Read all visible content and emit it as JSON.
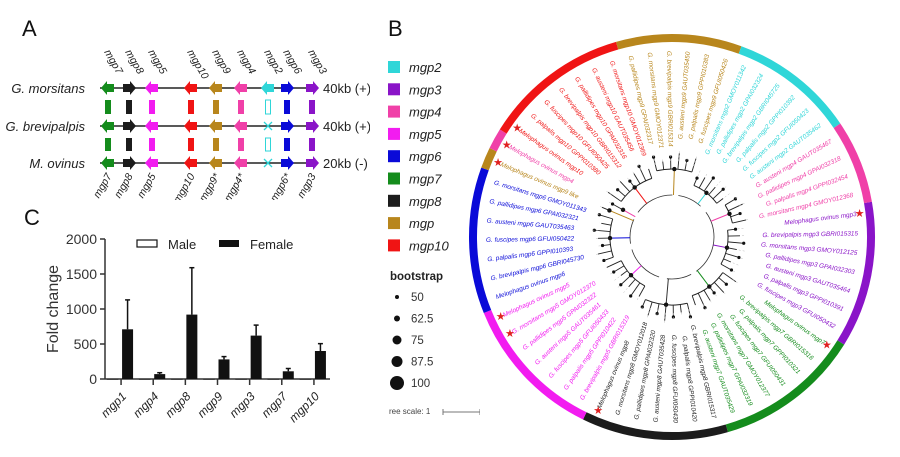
{
  "panels": {
    "A": {
      "letter": "A",
      "species": [
        {
          "name": "G. morsitans",
          "size": "40kb (+)",
          "genes": [
            "mgp7",
            "mgp8",
            "mgp5",
            "mgp10",
            "mgp9",
            "mgp4",
            "mgp2",
            "mgp6",
            "mgp3"
          ]
        },
        {
          "name": "G. brevipalpis",
          "size": "40kb (+)",
          "genes": [
            "mgp7",
            "mgp8",
            "mgp5",
            "mgp10",
            "mgp9",
            "mgp4",
            "absent",
            "mgp6",
            "mgp3"
          ]
        },
        {
          "name": "M. ovinus",
          "size": "20kb (-)",
          "genes": [
            "mgp7",
            "mgp8",
            "mgp5",
            "mgp10",
            "mgp9",
            "mgp4",
            "absent",
            "mgp6",
            "mgp3"
          ]
        }
      ],
      "top_labels": [
        "mgp7",
        "mgp8",
        "mgp5",
        "mgp10",
        "mgp9",
        "mgp4",
        "mgp2",
        "mgp6",
        "mgp3"
      ],
      "bottom_labels": [
        "mgp7",
        "mgp8",
        "mgp5",
        "mgp10",
        "mgp9*",
        "mgp4*",
        "mgp6*",
        "mgp3"
      ],
      "gene_colors": {
        "mgp2": "#2fd6d8",
        "mgp3": "#8a14c8",
        "mgp4": "#f040a8",
        "mgp5": "#f21cf0",
        "mgp6": "#0a0ad8",
        "mgp7": "#148c1c",
        "mgp8": "#1c1c1c",
        "mgp9": "#b8861c",
        "mgp10": "#f01414"
      }
    },
    "B": {
      "letter": "B",
      "legend": [
        {
          "label": "mgp2",
          "color": "#2fd6d8"
        },
        {
          "label": "mgp3",
          "color": "#8a14c8"
        },
        {
          "label": "mgp4",
          "color": "#f040a8"
        },
        {
          "label": "mgp5",
          "color": "#f21cf0"
        },
        {
          "label": "mgp6",
          "color": "#0a0ad8"
        },
        {
          "label": "mgp7",
          "color": "#148c1c"
        },
        {
          "label": "mgp8",
          "color": "#1c1c1c"
        },
        {
          "label": "mgp",
          "color": "#b8861c"
        },
        {
          "label": "mgp10",
          "color": "#f01414"
        }
      ],
      "bootstrap_title": "bootstrap",
      "bootstrap_values": [
        "50",
        "62.5",
        "75",
        "87.5",
        "100"
      ],
      "tree_scale_label": "ree scale: 1",
      "clades": [
        {
          "gene": "mgp3",
          "color": "#8a14c8",
          "leaves": [
            "Melophagus ovinus mgp3",
            "G. brevipalpis mgp3 GBRI015315",
            "G. morsitans mgp3 GMOY012125",
            "G. pallidipes mgp3 GPAI032303",
            "G. austeni mgp3 GAUT035464",
            "G. palpalis mgp3 GPPI010391",
            "G. fuscipes mgp3 GFUI050432"
          ],
          "starred": [
            0
          ]
        },
        {
          "gene": "mgp7",
          "color": "#148c1c",
          "leaves": [
            "Melophagus ovinus mgp7",
            "G. brevipalpis mgp7 GBRI015316",
            "G. palpalis mgp7 GPPI010321",
            "G. fuscipes mgp7 GFUI050431",
            "G. morsitans mgp7 GMOY012377",
            "G. pallidipes mgp7 GPAI032319",
            "G. austeni mgp7 GAUT035429"
          ],
          "starred": [
            0
          ]
        },
        {
          "gene": "mgp8",
          "color": "#1c1c1c",
          "leaves": [
            "G. brevipalpis mgp8 GBRI015317",
            "G. palpalis mgp8 GPPI010420",
            "G. fuscipes mgp8 GFUI050430",
            "G. austeni mgp8 GAUT035428",
            "G. pallidipes mgp8 GPAI032320",
            "G. morsitans mgp8 GMOY012018",
            "Melophagus ovinus mgp8"
          ],
          "starred": [
            6
          ]
        },
        {
          "gene": "mgp5",
          "color": "#f21cf0",
          "leaves": [
            "G. brevipalpis mgp5 GBRI015319",
            "G. palpalis mgp5 GPPI010422",
            "G. fuscipes mgp5 GFUI050433",
            "G. austeni mgp5 GAUT035461",
            "G. pallidipes mgp5 GPAI032322",
            "G. morsitans mgp5 GMOY012370",
            "Melophagus ovinus mgp5"
          ],
          "starred": [
            5,
            6
          ]
        },
        {
          "gene": "mgp6",
          "color": "#0a0ad8",
          "leaves": [
            "Melophagus ovinus mgp6",
            "G. brevipalpis mgp6 GBRI045730",
            "G. palpalis mgp6 GPPI010393",
            "G. fuscipes mgp6 GFUI050422",
            "G. austeni mgp6 GAUT035463",
            "G. pallidipes mgp6 GPAI032321",
            "G. morsitans mgp6 GMOY011343"
          ],
          "starred": []
        },
        {
          "gene": "mgp",
          "color": "#b8861c",
          "leaves": [
            "Melophagus ovinus mgp9 like"
          ],
          "starred": [
            0
          ]
        },
        {
          "gene": "mgp4",
          "color": "#f040a8",
          "leaves": [
            "Melophagus ovinus mgp4"
          ],
          "starred": [
            0
          ]
        },
        {
          "gene": "mgp10",
          "color": "#f01414",
          "leaves": [
            "Melophagus ovinus mgp10",
            "G. palpalis mgp10 GPPI010380",
            "G. fuscipes mgp10 GFUI050425",
            "G. brevipalpis mgp10 GBRI015312",
            "G. pallidipes mgp10 GPAI032316",
            "G. austeni mgp10 GAUT035456",
            "G. morsitans mgp10 GMOY012369"
          ],
          "starred": [
            0
          ]
        },
        {
          "gene": "mgp",
          "color": "#b8861c",
          "leaves": [
            "G. pallidipes mgp9 GPAI032317",
            "G. morsitans mgp9 GMOY012371",
            "G. brevipalpis mgp9 GBRI015314",
            "G. austeni mgp9 GAUT035450",
            "G. palpalis mgp9 GPPI010383",
            "G. fuscipes mgp9 GFUI050426"
          ],
          "starred": []
        },
        {
          "gene": "mgp2",
          "color": "#2fd6d8",
          "leaves": [
            "G. morsitans mgp2 GMOY011342",
            "G. pallidipes mgp2 GPAI032324",
            "G. brevipalpis mgp2 GBRI045725",
            "G. palpalis mgp2 GPPI010392",
            "G. fuscipes mgp2 GFUI050423",
            "G. austeni mgp2 GAUT035462"
          ],
          "starred": []
        },
        {
          "gene": "mgp4",
          "color": "#f040a8",
          "leaves": [
            "G. austeni mgp4 GAUT035467",
            "G. pallidipes mgp4 GPAI032318",
            "G. palpalis mgp4 GPPI032454",
            "G. morsitans mgp4 GMOY012368"
          ],
          "starred": []
        }
      ]
    },
    "C": {
      "letter": "C",
      "legend": {
        "male": "Male",
        "female": "Female"
      }
    }
  },
  "chart_data": {
    "type": "bar",
    "title": "",
    "xlabel": "",
    "ylabel": "Fold change",
    "categories": [
      "mgp1",
      "mgp4",
      "mgp8",
      "mgp9",
      "mgp3",
      "mgp7",
      "mgp10"
    ],
    "series": [
      {
        "name": "Male",
        "values": [
          1,
          1,
          1,
          1,
          1,
          1,
          1
        ]
      },
      {
        "name": "Female",
        "values": [
          710,
          70,
          920,
          280,
          620,
          110,
          400
        ],
        "error_upper": [
          1130,
          90,
          1590,
          320,
          770,
          150,
          505
        ]
      }
    ],
    "ylim": [
      0,
      2000
    ],
    "yticks": [
      "0",
      "500",
      "1000",
      "1500",
      "2000"
    ],
    "legend_position": "top",
    "grid": false
  }
}
